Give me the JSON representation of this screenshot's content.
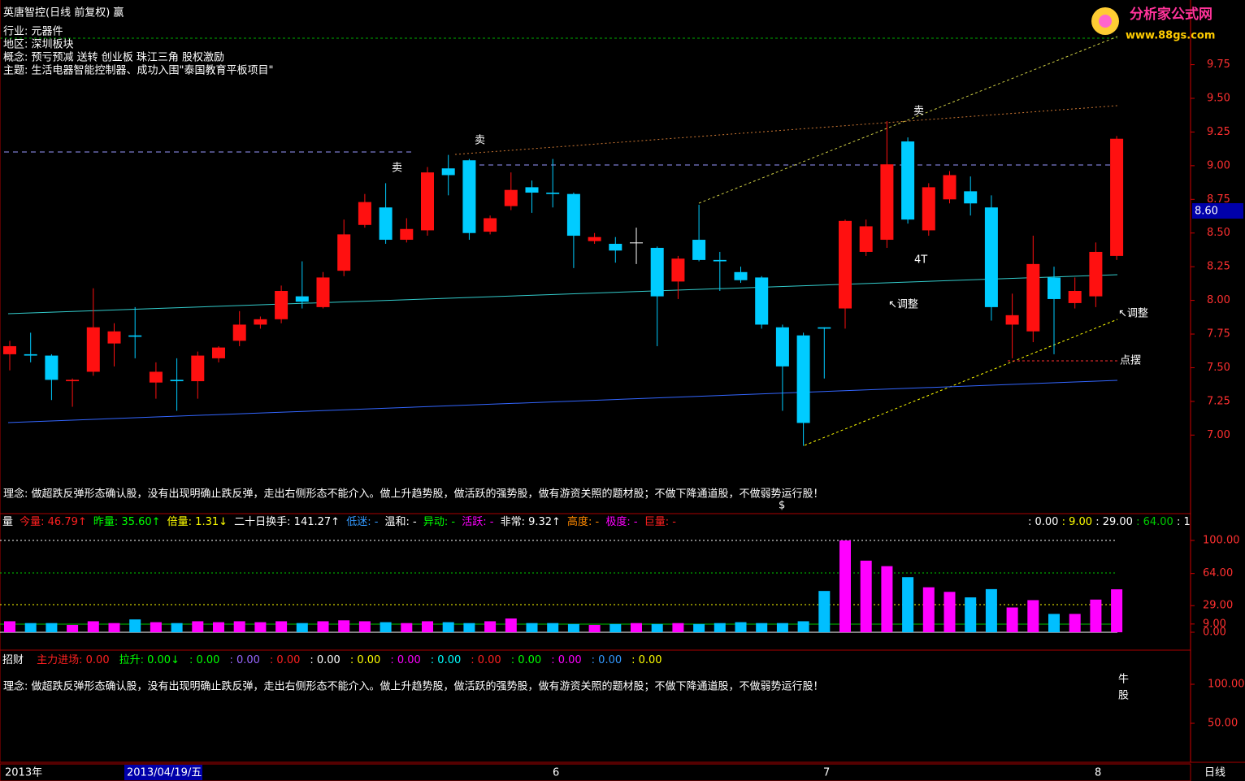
{
  "header": {
    "title": "英唐智控(日线 前复权) 赢",
    "lines": [
      {
        "text": "行业: 元器件",
        "color": "#00ffff"
      },
      {
        "text": "地区: 深圳板块",
        "color": "#ff00ff"
      },
      {
        "text": "概念: 预亏预减 送转 创业板 珠江三角 股权激励",
        "color": "#ffff00"
      },
      {
        "text": "主题: 生活电器智能控制器、成功入围\"泰国教育平板项目\"",
        "color": "#ff2020"
      }
    ],
    "logo": "分析家公式网",
    "logo_url": "www.88gs.com",
    "cursor_price": "8.60"
  },
  "chart_data": [
    {
      "type": "candlestick",
      "up_color": "#ff1010",
      "down_color": "#00ccff",
      "flat_color": "#ffffff",
      "open": [
        7.6,
        7.6,
        7.59,
        7.4,
        7.47,
        7.68,
        7.74,
        7.39,
        7.41,
        7.4,
        7.57,
        7.7,
        7.82,
        7.86,
        8.03,
        7.95,
        8.22,
        8.56,
        8.69,
        8.45,
        8.52,
        8.98,
        9.04,
        8.51,
        8.7,
        8.84,
        8.8,
        8.79,
        8.44,
        8.42,
        8.43,
        8.39,
        8.14,
        8.45,
        8.3,
        8.21,
        8.17,
        7.8,
        7.74,
        7.8,
        7.94,
        8.36,
        8.45,
        9.18,
        8.52,
        8.75,
        8.81,
        8.69,
        7.82,
        7.77,
        8.17,
        7.98,
        8.03,
        8.33
      ],
      "high": [
        7.7,
        7.76,
        7.6,
        7.42,
        8.09,
        7.83,
        7.95,
        7.54,
        7.57,
        7.62,
        7.66,
        7.92,
        7.88,
        8.11,
        8.29,
        8.21,
        8.6,
        8.79,
        8.87,
        8.61,
        8.99,
        9.08,
        9.05,
        8.63,
        8.95,
        8.89,
        9.05,
        8.8,
        8.5,
        8.47,
        8.54,
        8.4,
        8.33,
        8.71,
        8.36,
        8.25,
        8.18,
        7.82,
        7.76,
        7.8,
        8.6,
        8.6,
        9.33,
        9.21,
        8.87,
        8.96,
        8.92,
        8.78,
        8.05,
        8.48,
        8.25,
        8.17,
        8.43,
        9.22
      ],
      "low": [
        7.48,
        7.54,
        7.26,
        7.21,
        7.44,
        7.51,
        7.57,
        7.27,
        7.18,
        7.27,
        7.54,
        7.66,
        7.79,
        7.83,
        7.94,
        7.94,
        8.18,
        8.54,
        8.42,
        8.43,
        8.48,
        8.78,
        8.45,
        8.49,
        8.67,
        8.65,
        8.69,
        8.24,
        8.42,
        8.28,
        8.27,
        7.66,
        8.01,
        8.29,
        8.07,
        8.13,
        7.79,
        7.18,
        6.92,
        7.42,
        7.79,
        8.33,
        8.39,
        8.57,
        8.48,
        8.72,
        8.63,
        7.85,
        7.57,
        7.69,
        7.6,
        7.94,
        7.95,
        8.3
      ],
      "close": [
        7.66,
        7.59,
        7.41,
        7.41,
        7.8,
        7.77,
        7.73,
        7.47,
        7.4,
        7.59,
        7.65,
        7.82,
        7.86,
        8.07,
        7.99,
        8.17,
        8.49,
        8.73,
        8.45,
        8.53,
        8.95,
        8.93,
        8.5,
        8.61,
        8.82,
        8.8,
        8.79,
        8.48,
        8.47,
        8.37,
        8.43,
        8.03,
        8.31,
        8.3,
        8.29,
        8.15,
        7.82,
        7.51,
        7.09,
        7.79,
        8.59,
        8.55,
        9.01,
        8.6,
        8.84,
        8.93,
        8.72,
        7.95,
        7.89,
        8.27,
        8.01,
        8.07,
        8.36,
        9.2
      ],
      "ylim": [
        6.64,
        10.2
      ],
      "yticks": [
        {
          "value": 7,
          "label": "7.00"
        },
        {
          "value": 7.25,
          "label": "7.25"
        },
        {
          "value": 7.5,
          "label": "7.50"
        },
        {
          "value": 7.75,
          "label": "7.75"
        },
        {
          "value": 8,
          "label": "8.00"
        },
        {
          "value": 8.25,
          "label": "8.25"
        },
        {
          "value": 8.5,
          "label": "8.50"
        },
        {
          "value": 8.75,
          "label": "8.75"
        },
        {
          "value": 9,
          "label": "9.00"
        },
        {
          "value": 9.25,
          "label": "9.25"
        },
        {
          "value": 9.5,
          "label": "9.50"
        },
        {
          "value": 9.75,
          "label": "9.75"
        }
      ],
      "annotations": [
        {
          "text": "卖",
          "color": "#00ff00"
        },
        {
          "text": "卖",
          "color": "#00ff00"
        },
        {
          "text": "卖",
          "color": "#00ff00"
        },
        {
          "text": "4T",
          "color": "#00ffff"
        },
        {
          "text": "↖调整",
          "color": "#ffffff"
        },
        {
          "text": "↖调整",
          "color": "#ffffff"
        },
        {
          "text": "点摆",
          "color": "#ff2020"
        },
        {
          "text": "$",
          "color": "#ff2020"
        }
      ],
      "note": "理念: 做超跌反弹形态确认股，没有出现明确止跌反弹，走出右侧形态不能介入。做上升趋势股，做活跃的强势股，做有游资关照的题材股；不做下降通道股，不做弱势运行股！"
    },
    {
      "type": "bar",
      "up_color": "#ff00ff",
      "down_color": "#00bfff",
      "values": [
        12,
        10,
        10,
        8,
        12,
        10,
        14,
        11,
        10,
        12,
        11,
        12,
        11,
        12,
        10,
        12,
        13,
        12,
        11,
        10,
        12,
        11,
        10,
        12,
        15,
        10,
        10,
        9,
        8,
        9,
        10,
        9,
        10,
        9,
        10,
        11,
        10,
        10,
        12,
        45,
        100,
        78,
        72,
        60,
        49,
        44,
        38,
        47,
        27,
        35,
        20,
        20,
        35.6,
        46.79
      ],
      "ylim": [
        0,
        100
      ],
      "yticks": [
        {
          "value": 0,
          "label": "0.00"
        },
        {
          "value": 9,
          "label": "9.00"
        },
        {
          "value": 29,
          "label": "29.00"
        },
        {
          "value": 64,
          "label": "64.00"
        },
        {
          "value": 100,
          "label": "100.00"
        }
      ],
      "header": [
        {
          "text": "量 ",
          "color": "#ffffff"
        },
        {
          "text": "今量: 46.79↑ ",
          "color": "#ff2020"
        },
        {
          "text": "昨量: 35.60↑ ",
          "color": "#00ff00"
        },
        {
          "text": "倍量: 1.31↓ ",
          "color": "#ffff00"
        },
        {
          "text": "二十日换手: 141.27↑ ",
          "color": "#ffffff"
        },
        {
          "text": "低迷: - ",
          "color": "#3399ff"
        },
        {
          "text": "温和: - ",
          "color": "#ffffff"
        },
        {
          "text": "异动: - ",
          "color": "#00ff00"
        },
        {
          "text": "活跃: - ",
          "color": "#ff00ff"
        },
        {
          "text": "非常: 9.32↑ ",
          "color": "#ffffff"
        },
        {
          "text": "高度: - ",
          "color": "#ff8800"
        },
        {
          "text": "极度: - ",
          "color": "#ff00ff"
        },
        {
          "text": "巨量: -",
          "color": "#ff2020"
        }
      ],
      "header_right": [
        {
          "text": ": 0.00 ",
          "color": "#ffffff"
        },
        {
          "text": ": 9.00 ",
          "color": "#ffff00"
        },
        {
          "text": ": 29.00 ",
          "color": "#ffffff"
        },
        {
          "text": ": 64.00 ",
          "color": "#00cc00"
        },
        {
          "text": ": 1",
          "color": "#ffffff"
        }
      ]
    }
  ],
  "panel3": {
    "header": [
      {
        "text": "招财 ",
        "color": "#ffffff"
      },
      {
        "text": "主力进场: 0.00",
        "color": "#ff2020"
      },
      {
        "text": "拉升: 0.00↓",
        "color": "#00ff00"
      },
      {
        "text": ": 0.00",
        "color": "#00ff00"
      },
      {
        "text": ": 0.00",
        "color": "#9966ff"
      },
      {
        "text": ": 0.00",
        "color": "#ff2020"
      },
      {
        "text": ": 0.00",
        "color": "#ffffff"
      },
      {
        "text": ": 0.00",
        "color": "#ffff00"
      },
      {
        "text": ": 0.00",
        "color": "#ff00ff"
      },
      {
        "text": ": 0.00",
        "color": "#00ffff"
      },
      {
        "text": ": 0.00",
        "color": "#ff2020"
      },
      {
        "text": ": 0.00",
        "color": "#00ff00"
      },
      {
        "text": ": 0.00",
        "color": "#ff00ff"
      },
      {
        "text": ": 0.00",
        "color": "#3399ff"
      },
      {
        "text": ": 0.00",
        "color": "#ffff00"
      }
    ],
    "note": "理念: 做超跌反弹形态确认股，没有出现明确止跌反弹，走出右侧形态不能介入。做上升趋势股，做活跃的强势股，做有游资关照的题材股；不做下降通道股，不做弱势运行股！",
    "badge": [
      "牛",
      "股"
    ],
    "ylim": [
      0,
      100
    ],
    "yticks": [
      {
        "value": 50,
        "label": "50.00"
      },
      {
        "value": 100,
        "label": "100.00"
      }
    ]
  },
  "footer": {
    "year": "2013年",
    "cursor_date": "2013/04/19/五",
    "months": [
      "6",
      "7",
      "8"
    ],
    "period": "日线"
  }
}
